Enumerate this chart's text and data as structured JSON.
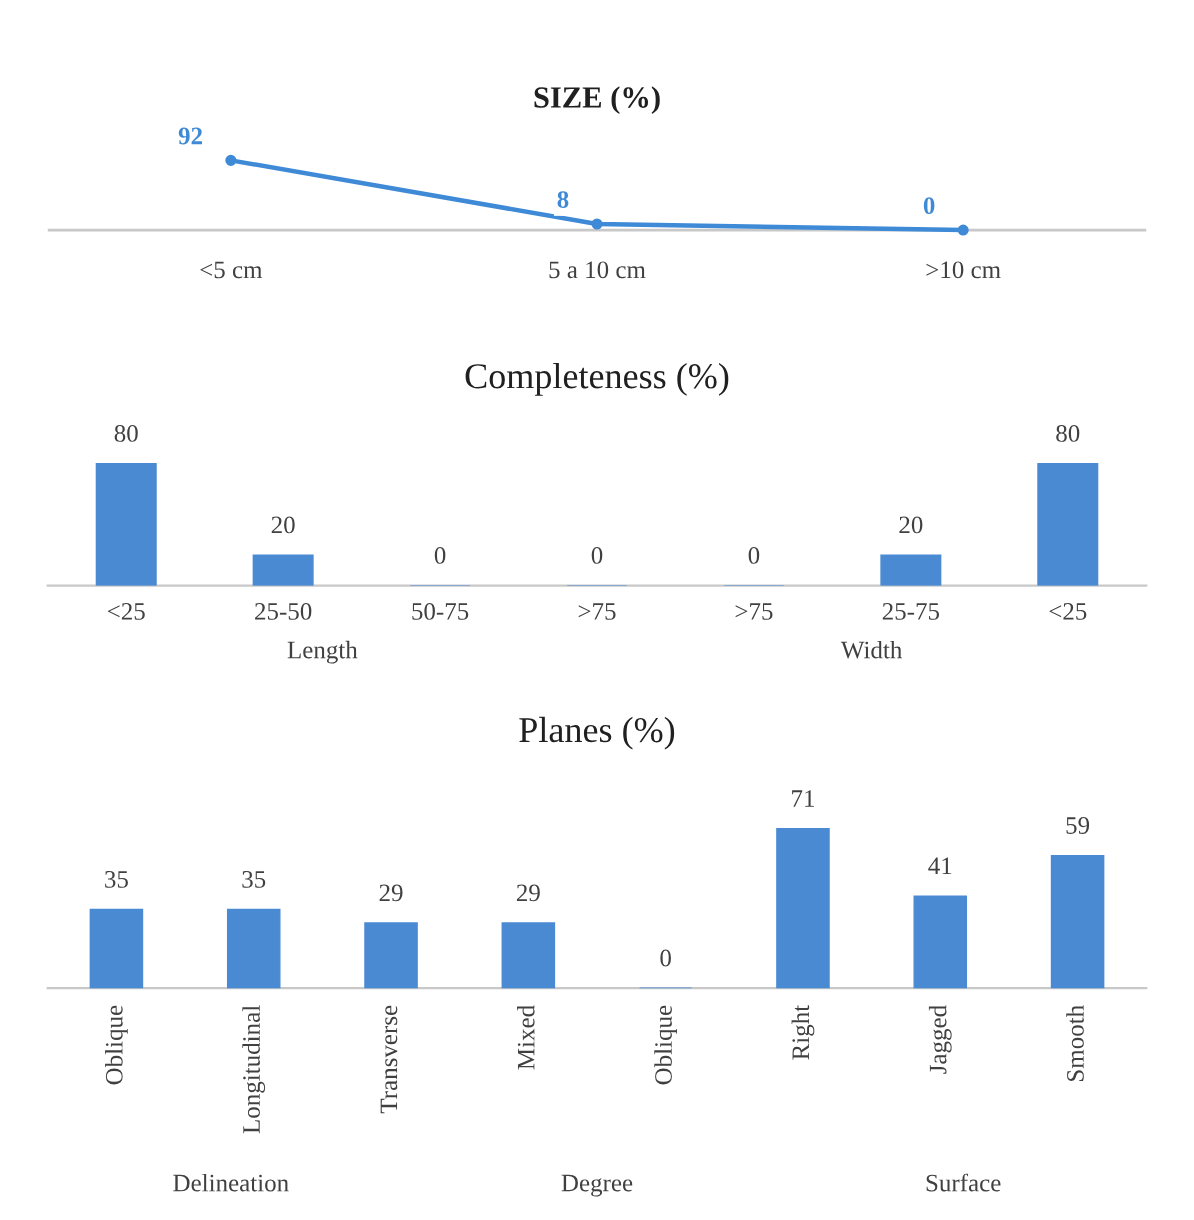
{
  "chart_data": [
    {
      "type": "line",
      "title": "SIZE (%)",
      "categories": [
        "<5 cm",
        "5 a 10 cm",
        ">10 cm"
      ],
      "series": [
        {
          "color": "#3f8ad6",
          "values": [
            92,
            8,
            0
          ]
        }
      ],
      "data_labels": true,
      "marker": "circle",
      "grid": false,
      "legend": false
    },
    {
      "type": "bar",
      "title": "Completeness (%)",
      "categories": [
        "<25",
        "25-50",
        "50-75",
        ">75",
        ">75",
        "25-75",
        "<25"
      ],
      "series": [
        {
          "color": "#4a8ad3",
          "values": [
            80,
            20,
            0,
            0,
            0,
            20,
            80
          ]
        }
      ],
      "annotations": [
        "Length",
        "Width"
      ],
      "data_labels": true,
      "grid": false,
      "legend": false
    },
    {
      "type": "bar",
      "title": "Planes (%)",
      "categories": [
        "Oblique",
        "Longitudinal",
        "Transverse",
        "Mixed",
        "Oblique",
        "Right",
        "Jagged",
        "Smooth"
      ],
      "series": [
        {
          "color": "#4a8ad3",
          "values": [
            35,
            35,
            29,
            29,
            0,
            71,
            41,
            59
          ]
        }
      ],
      "annotations": [
        "Delineation",
        "Degree",
        "Surface"
      ],
      "data_labels": true,
      "grid": false,
      "legend": false
    }
  ]
}
